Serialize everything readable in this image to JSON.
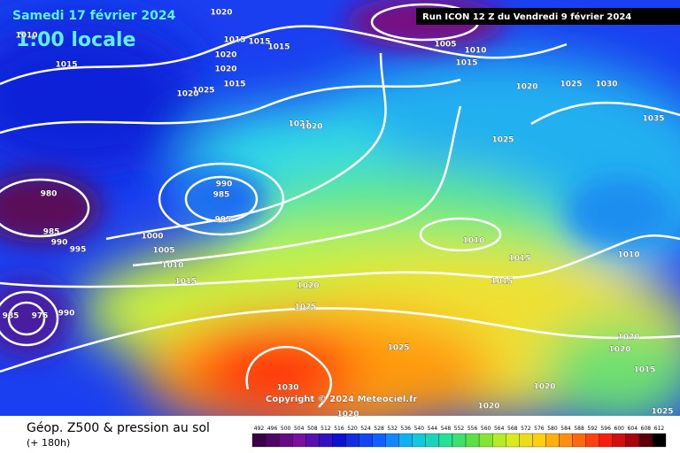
{
  "header": {
    "date": "Samedi 17 février 2024",
    "time": "1:00 locale",
    "run": "Run ICON 12 Z du Vendredi 9 février 2024"
  },
  "footer": {
    "title": "Géop. Z500 & pression au sol",
    "lead": "(+ 180h)",
    "copyright": "Copyright © 2024 Meteociel.fr"
  },
  "colorbar": {
    "labels": [
      492,
      496,
      500,
      504,
      508,
      512,
      516,
      520,
      524,
      528,
      532,
      536,
      540,
      544,
      548,
      552,
      556,
      560,
      564,
      568,
      572,
      576,
      580,
      584,
      588,
      592,
      596,
      600,
      604,
      608,
      612
    ]
  },
  "isobar_labels": [
    1020,
    1015,
    1015,
    1015,
    1020,
    1020,
    1015,
    1025,
    1020,
    1015,
    1010,
    1021,
    1020,
    990,
    985,
    995,
    1000,
    1005,
    1010,
    1015,
    980,
    985,
    990,
    995,
    985,
    975,
    990,
    1020,
    1025,
    1025,
    1030,
    1020,
    1020,
    1020,
    1020,
    1020,
    1015,
    1025,
    1010,
    1015,
    1015,
    1010,
    1025,
    1020,
    1025,
    1030,
    1035,
    1005,
    1010,
    1015
  ]
}
